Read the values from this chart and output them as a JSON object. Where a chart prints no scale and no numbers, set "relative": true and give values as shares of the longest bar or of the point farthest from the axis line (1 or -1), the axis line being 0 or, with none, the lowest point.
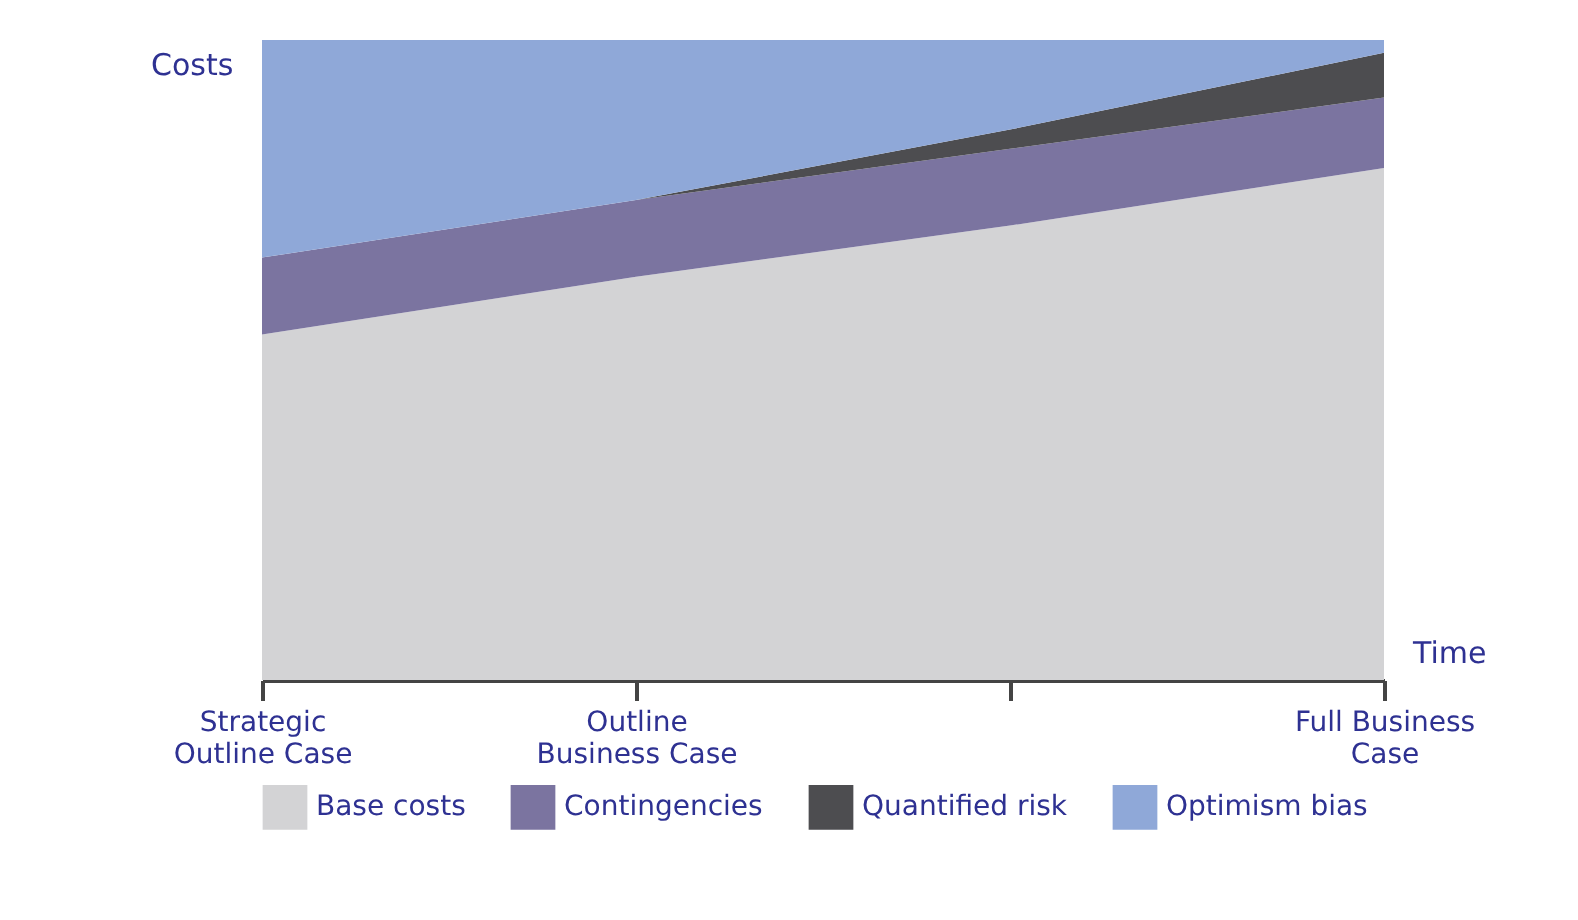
{
  "chart_data": {
    "type": "area",
    "stacked": true,
    "relative": true,
    "xlabel": "Time",
    "ylabel": "Costs",
    "legend": "bottom",
    "categories": [
      "Strategic\nOutline Case",
      "Outline\nBusiness Case",
      null,
      "Full Business\nCase"
    ],
    "series": [
      {
        "name": "Base costs",
        "color": "#d3d3d5",
        "values": [
          0.54,
          0.63,
          0.71,
          0.8
        ]
      },
      {
        "name": "Contingencies",
        "color": "#7b74a0",
        "values": [
          0.12,
          0.12,
          0.12,
          0.11
        ]
      },
      {
        "name": "Quantified risk",
        "color": "#4d4d50",
        "values": [
          0,
          0,
          0.03,
          0.07
        ]
      },
      {
        "name": "Optimism bias",
        "color": "#8fa8d8",
        "values": [
          0.34,
          0.25,
          0.14,
          0.02
        ]
      }
    ]
  }
}
